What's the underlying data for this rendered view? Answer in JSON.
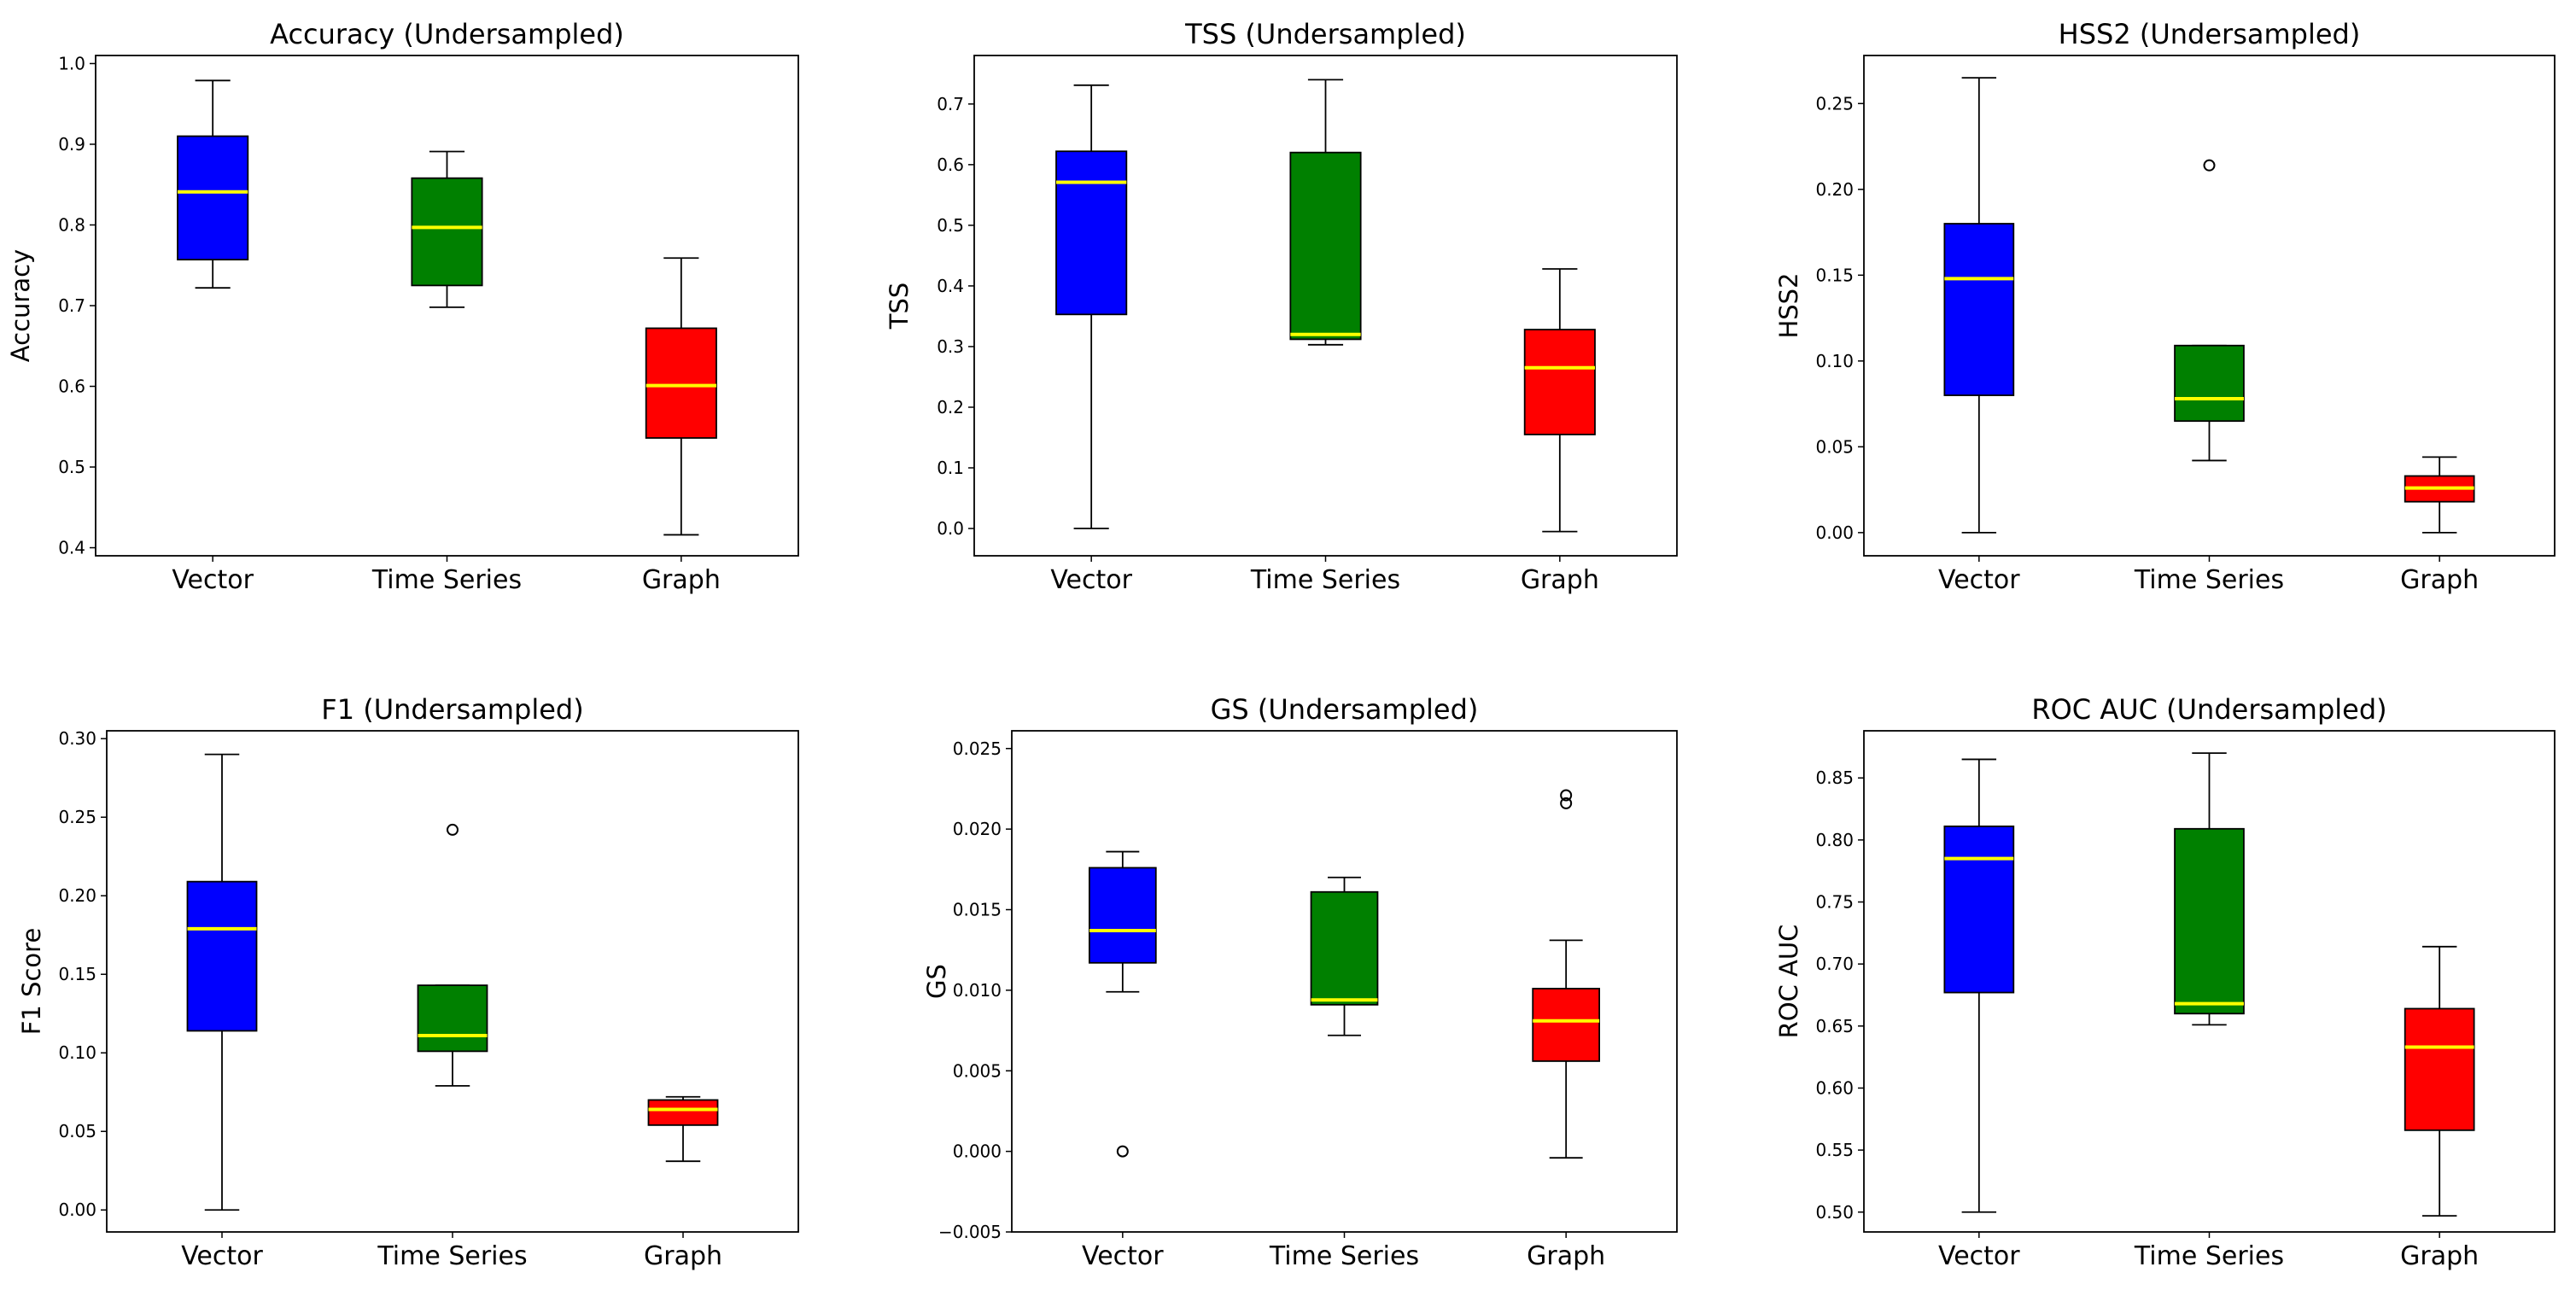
{
  "figure": {
    "colors": {
      "Vector": "#0000ff",
      "Time Series": "#008000",
      "Graph": "#ff0000",
      "median": "#ffff00",
      "whisker": "#000000",
      "frame": "#000000"
    }
  },
  "chart_data": [
    {
      "type": "box",
      "title": "Accuracy (Undersampled)",
      "ylabel": "Accuracy",
      "categories": [
        "Vector",
        "Time Series",
        "Graph"
      ],
      "ylim": [
        0.39,
        1.01
      ],
      "yticks": [
        0.4,
        0.5,
        0.6,
        0.7,
        0.8,
        0.9,
        1.0
      ],
      "ytick_labels": [
        "0.4",
        "0.5",
        "0.6",
        "0.7",
        "0.8",
        "0.9",
        "1.0"
      ],
      "boxes": [
        {
          "name": "Vector",
          "whislo": 0.722,
          "q1": 0.757,
          "med": 0.841,
          "q3": 0.91,
          "whishi": 0.979,
          "fliers": []
        },
        {
          "name": "Time Series",
          "whislo": 0.698,
          "q1": 0.725,
          "med": 0.797,
          "q3": 0.858,
          "whishi": 0.891,
          "fliers": []
        },
        {
          "name": "Graph",
          "whislo": 0.416,
          "q1": 0.536,
          "med": 0.601,
          "q3": 0.672,
          "whishi": 0.759,
          "fliers": []
        }
      ]
    },
    {
      "type": "box",
      "title": "TSS (Undersampled)",
      "ylabel": "TSS",
      "categories": [
        "Vector",
        "Time Series",
        "Graph"
      ],
      "ylim": [
        -0.045,
        0.78
      ],
      "yticks": [
        0.0,
        0.1,
        0.2,
        0.3,
        0.4,
        0.5,
        0.6,
        0.7
      ],
      "ytick_labels": [
        "0.0",
        "0.1",
        "0.2",
        "0.3",
        "0.4",
        "0.5",
        "0.6",
        "0.7"
      ],
      "boxes": [
        {
          "name": "Vector",
          "whislo": 0.0,
          "q1": 0.353,
          "med": 0.571,
          "q3": 0.622,
          "whishi": 0.731,
          "fliers": []
        },
        {
          "name": "Time Series",
          "whislo": 0.303,
          "q1": 0.312,
          "med": 0.32,
          "q3": 0.62,
          "whishi": 0.74,
          "fliers": []
        },
        {
          "name": "Graph",
          "whislo": -0.005,
          "q1": 0.155,
          "med": 0.265,
          "q3": 0.328,
          "whishi": 0.428,
          "fliers": []
        }
      ]
    },
    {
      "type": "box",
      "title": "HSS2 (Undersampled)",
      "ylabel": "HSS2",
      "categories": [
        "Vector",
        "Time Series",
        "Graph"
      ],
      "ylim": [
        -0.0135,
        0.278
      ],
      "yticks": [
        0.0,
        0.05,
        0.1,
        0.15,
        0.2,
        0.25
      ],
      "ytick_labels": [
        "0.00",
        "0.05",
        "0.10",
        "0.15",
        "0.20",
        "0.25"
      ],
      "boxes": [
        {
          "name": "Vector",
          "whislo": 0.0,
          "q1": 0.08,
          "med": 0.148,
          "q3": 0.18,
          "whishi": 0.265,
          "fliers": []
        },
        {
          "name": "Time Series",
          "whislo": 0.042,
          "q1": 0.065,
          "med": 0.078,
          "q3": 0.109,
          "whishi": 0.109,
          "fliers": [
            0.214
          ]
        },
        {
          "name": "Graph",
          "whislo": 0.0,
          "q1": 0.018,
          "med": 0.026,
          "q3": 0.033,
          "whishi": 0.044,
          "fliers": []
        }
      ]
    },
    {
      "type": "box",
      "title": "F1 (Undersampled)",
      "ylabel": "F1 Score",
      "categories": [
        "Vector",
        "Time Series",
        "Graph"
      ],
      "ylim": [
        -0.014,
        0.305
      ],
      "yticks": [
        0.0,
        0.05,
        0.1,
        0.15,
        0.2,
        0.25,
        0.3
      ],
      "ytick_labels": [
        "0.00",
        "0.05",
        "0.10",
        "0.15",
        "0.20",
        "0.25",
        "0.30"
      ],
      "boxes": [
        {
          "name": "Vector",
          "whislo": 0.0,
          "q1": 0.114,
          "med": 0.179,
          "q3": 0.209,
          "whishi": 0.29,
          "fliers": []
        },
        {
          "name": "Time Series",
          "whislo": 0.079,
          "q1": 0.101,
          "med": 0.111,
          "q3": 0.143,
          "whishi": 0.143,
          "fliers": [
            0.242
          ]
        },
        {
          "name": "Graph",
          "whislo": 0.031,
          "q1": 0.054,
          "med": 0.064,
          "q3": 0.07,
          "whishi": 0.072,
          "fliers": []
        }
      ]
    },
    {
      "type": "box",
      "title": "GS (Undersampled)",
      "ylabel": "GS",
      "categories": [
        "Vector",
        "Time Series",
        "Graph"
      ],
      "ylim": [
        -0.005,
        0.0261
      ],
      "yticks": [
        -0.005,
        0.0,
        0.005,
        0.01,
        0.015,
        0.02,
        0.025
      ],
      "ytick_labels": [
        "−0.005",
        "0.000",
        "0.005",
        "0.010",
        "0.015",
        "0.020",
        "0.025"
      ],
      "boxes": [
        {
          "name": "Vector",
          "whislo": 0.0099,
          "q1": 0.0117,
          "med": 0.0137,
          "q3": 0.0176,
          "whishi": 0.0186,
          "fliers": [
            0.0
          ]
        },
        {
          "name": "Time Series",
          "whislo": 0.0072,
          "q1": 0.0091,
          "med": 0.0094,
          "q3": 0.0161,
          "whishi": 0.017,
          "fliers": []
        },
        {
          "name": "Graph",
          "whislo": -0.0004,
          "q1": 0.0056,
          "med": 0.0081,
          "q3": 0.0101,
          "whishi": 0.0131,
          "fliers": [
            0.0216,
            0.0221
          ]
        }
      ]
    },
    {
      "type": "box",
      "title": "ROC AUC (Undersampled)",
      "ylabel": "ROC AUC",
      "categories": [
        "Vector",
        "Time Series",
        "Graph"
      ],
      "ylim": [
        0.484,
        0.888
      ],
      "yticks": [
        0.5,
        0.55,
        0.6,
        0.65,
        0.7,
        0.75,
        0.8,
        0.85
      ],
      "ytick_labels": [
        "0.50",
        "0.55",
        "0.60",
        "0.65",
        "0.70",
        "0.75",
        "0.80",
        "0.85"
      ],
      "boxes": [
        {
          "name": "Vector",
          "whislo": 0.5,
          "q1": 0.677,
          "med": 0.785,
          "q3": 0.811,
          "whishi": 0.865,
          "fliers": []
        },
        {
          "name": "Time Series",
          "whislo": 0.651,
          "q1": 0.66,
          "med": 0.668,
          "q3": 0.809,
          "whishi": 0.87,
          "fliers": []
        },
        {
          "name": "Graph",
          "whislo": 0.497,
          "q1": 0.566,
          "med": 0.633,
          "q3": 0.664,
          "whishi": 0.714,
          "fliers": []
        }
      ]
    }
  ]
}
